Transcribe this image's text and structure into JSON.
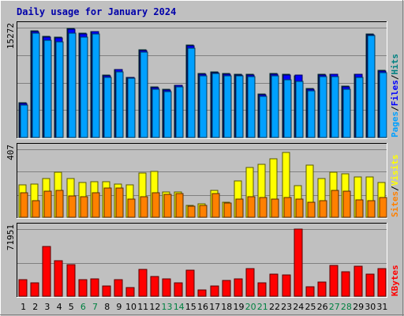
{
  "title": "Daily usage for January 2024",
  "colors": {
    "background": "#c0c0c0",
    "grid": "#808080",
    "hits": "#008080",
    "files": "#0000ff",
    "pages": "#00a0ff",
    "visits": "#ffff00",
    "sites": "#ff8000",
    "kbytes": "#ff0000",
    "weekend_label": "#008040",
    "weekday_label": "#000000"
  },
  "chart_data": [
    {
      "type": "bar",
      "name": "hits-files-pages",
      "max_label": "15272",
      "ylim": [
        0,
        15272
      ],
      "right_labels": [
        "Pages",
        "/",
        "Files",
        "/",
        "Hits"
      ],
      "categories": [
        "1",
        "2",
        "3",
        "4",
        "5",
        "6",
        "7",
        "8",
        "9",
        "10",
        "11",
        "12",
        "13",
        "14",
        "15",
        "16",
        "17",
        "18",
        "19",
        "20",
        "21",
        "22",
        "23",
        "24",
        "25",
        "26",
        "27",
        "28",
        "29",
        "30",
        "31"
      ],
      "weekend": [
        "6",
        "7",
        "13",
        "14",
        "20",
        "21",
        "27",
        "28"
      ],
      "series": [
        {
          "name": "Hits",
          "values": [
            4800,
            14800,
            14100,
            13900,
            15200,
            14500,
            14700,
            8700,
            9500,
            8400,
            12200,
            7000,
            6700,
            7300,
            12800,
            8900,
            9100,
            8900,
            8800,
            8800,
            6000,
            8900,
            8800,
            8600,
            6800,
            8800,
            8800,
            7100,
            8800,
            14400,
            9300
          ]
        },
        {
          "name": "Files",
          "values": [
            4700,
            14700,
            13900,
            13800,
            15000,
            14400,
            14700,
            8600,
            9400,
            8300,
            12100,
            6900,
            6600,
            7200,
            12700,
            8800,
            9000,
            8800,
            8700,
            8700,
            5900,
            8800,
            8700,
            8700,
            6700,
            8700,
            8800,
            7000,
            8800,
            14300,
            9200
          ]
        },
        {
          "name": "Pages",
          "values": [
            4500,
            14500,
            13500,
            13300,
            14500,
            14000,
            14400,
            8400,
            9100,
            8200,
            11900,
            6700,
            6400,
            7000,
            12400,
            8600,
            8900,
            8600,
            8600,
            8500,
            5700,
            8600,
            8000,
            7800,
            6500,
            8500,
            8500,
            6700,
            8300,
            14200,
            9000
          ]
        }
      ]
    },
    {
      "type": "bar",
      "name": "visits-sites",
      "max_label": "407",
      "ylim": [
        0,
        407
      ],
      "right_labels": [
        "Sites",
        "/",
        "Visits"
      ],
      "categories": [
        "1",
        "2",
        "3",
        "4",
        "5",
        "6",
        "7",
        "8",
        "9",
        "10",
        "11",
        "12",
        "13",
        "14",
        "15",
        "16",
        "17",
        "18",
        "19",
        "20",
        "21",
        "22",
        "23",
        "24",
        "25",
        "26",
        "27",
        "28",
        "29",
        "30",
        "31"
      ],
      "series": [
        {
          "name": "Visits",
          "values": [
            195,
            200,
            230,
            270,
            230,
            210,
            215,
            215,
            200,
            195,
            265,
            275,
            150,
            150,
            70,
            80,
            160,
            90,
            220,
            300,
            315,
            350,
            390,
            190,
            310,
            230,
            270,
            260,
            240,
            240,
            210
          ]
        },
        {
          "name": "Sites",
          "values": [
            145,
            100,
            155,
            160,
            130,
            125,
            145,
            175,
            175,
            110,
            125,
            145,
            135,
            140,
            65,
            70,
            140,
            85,
            110,
            125,
            120,
            110,
            120,
            110,
            90,
            100,
            160,
            155,
            105,
            100,
            120
          ]
        }
      ]
    },
    {
      "type": "bar",
      "name": "kbytes",
      "max_label": "71951",
      "ylim": [
        0,
        71951
      ],
      "right_labels": [
        "KBytes"
      ],
      "categories": [
        "1",
        "2",
        "3",
        "4",
        "5",
        "6",
        "7",
        "8",
        "9",
        "10",
        "11",
        "12",
        "13",
        "14",
        "15",
        "16",
        "17",
        "18",
        "19",
        "20",
        "21",
        "22",
        "23",
        "24",
        "25",
        "26",
        "27",
        "28",
        "29",
        "30",
        "31"
      ],
      "series": [
        {
          "name": "KBytes",
          "values": [
            18000,
            14500,
            53000,
            38000,
            34000,
            18000,
            19000,
            11000,
            18000,
            9000,
            29000,
            21000,
            19000,
            14000,
            28000,
            7000,
            11000,
            17000,
            19000,
            30000,
            14000,
            24000,
            23000,
            71951,
            10000,
            15500,
            33000,
            26000,
            32000,
            24000,
            30000
          ]
        }
      ]
    }
  ]
}
